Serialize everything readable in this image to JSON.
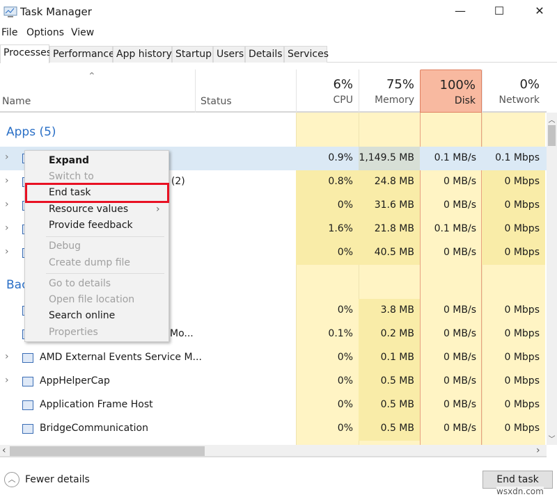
{
  "window": {
    "title": "Task Manager",
    "minimize": "—",
    "maximize": "☐",
    "close": "✕"
  },
  "menu": [
    "File",
    "Options",
    "View"
  ],
  "tabs": [
    "Processes",
    "Performance",
    "App history",
    "Startup",
    "Users",
    "Details",
    "Services"
  ],
  "header": {
    "sort_icon": "chevron-up",
    "name": "Name",
    "status": "Status",
    "cpu": {
      "pct": "6%",
      "label": "CPU"
    },
    "memory": {
      "pct": "75%",
      "label": "Memory"
    },
    "disk": {
      "pct": "100%",
      "label": "Disk"
    },
    "network": {
      "pct": "0%",
      "label": "Network"
    }
  },
  "colors": {
    "accent": "#2a6fc6",
    "disk_header": "#f8b9a0",
    "heat": "#fff4c4",
    "selected": "#dbe9f5",
    "highlight_box": "#e81123"
  },
  "groups": {
    "apps": "Apps (5)",
    "background_prefix": "Bac",
    "background_suffix": ")"
  },
  "apps": [
    {
      "name": "",
      "cpu": "0.9%",
      "memory": "1,149.5 MB",
      "disk": "0.1 MB/s",
      "network": "0.1 Mbps"
    },
    {
      "name": ") (2)",
      "cpu": "0.8%",
      "memory": "24.8 MB",
      "disk": "0 MB/s",
      "network": "0 Mbps"
    },
    {
      "name": "",
      "cpu": "0%",
      "memory": "31.6 MB",
      "disk": "0 MB/s",
      "network": "0 Mbps"
    },
    {
      "name": "",
      "cpu": "1.6%",
      "memory": "21.8 MB",
      "disk": "0.1 MB/s",
      "network": "0 Mbps"
    },
    {
      "name": "",
      "cpu": "0%",
      "memory": "40.5 MB",
      "disk": "0 MB/s",
      "network": "0 Mbps"
    }
  ],
  "background": [
    {
      "name": "",
      "cpu": "0%",
      "memory": "3.8 MB",
      "disk": "0 MB/s",
      "network": "0 Mbps"
    },
    {
      "name": "Mo...",
      "cpu": "0.1%",
      "memory": "0.2 MB",
      "disk": "0 MB/s",
      "network": "0 Mbps"
    },
    {
      "name": "AMD External Events Service M...",
      "cpu": "0%",
      "memory": "0.1 MB",
      "disk": "0 MB/s",
      "network": "0 Mbps"
    },
    {
      "name": "AppHelperCap",
      "cpu": "0%",
      "memory": "0.5 MB",
      "disk": "0 MB/s",
      "network": "0 Mbps"
    },
    {
      "name": "Application Frame Host",
      "cpu": "0%",
      "memory": "0.5 MB",
      "disk": "0 MB/s",
      "network": "0 Mbps"
    },
    {
      "name": "BridgeCommunication",
      "cpu": "0%",
      "memory": "0.5 MB",
      "disk": "0 MB/s",
      "network": "0 Mbps"
    }
  ],
  "context_menu": [
    {
      "label": "Expand",
      "state": "bold"
    },
    {
      "label": "Switch to",
      "state": "disabled"
    },
    {
      "label": "End task",
      "state": "highlighted"
    },
    {
      "label": "Resource values",
      "state": "submenu"
    },
    {
      "label": "Provide feedback",
      "state": "normal"
    },
    {
      "label": "Debug",
      "state": "disabled"
    },
    {
      "label": "Create dump file",
      "state": "disabled"
    },
    {
      "label": "Go to details",
      "state": "disabled"
    },
    {
      "label": "Open file location",
      "state": "disabled"
    },
    {
      "label": "Search online",
      "state": "normal"
    },
    {
      "label": "Properties",
      "state": "disabled"
    }
  ],
  "footer": {
    "fewer_details": "Fewer details",
    "end_task": "End task"
  },
  "watermark": "wsxdn.com"
}
